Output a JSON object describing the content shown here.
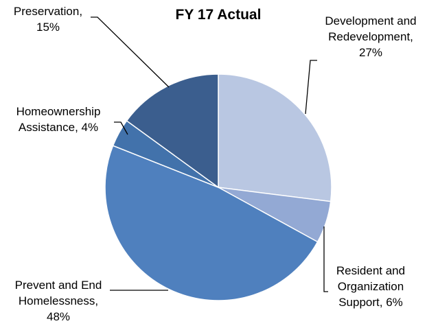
{
  "chart_data": {
    "type": "pie",
    "title": "FY 17 Actual",
    "values": [
      27,
      6,
      48,
      4,
      15
    ],
    "value_labels": [
      [
        "Development and",
        "Redevelopment,",
        "27%"
      ],
      [
        "Resident and",
        "Organization",
        "Support, 6%"
      ],
      [
        "Prevent and End",
        "Homelessness,",
        "48%"
      ],
      [
        "Homeownership",
        "Assistance, 4%"
      ],
      [
        "Preservation,",
        "15%"
      ]
    ],
    "colors": [
      "#b9c7e2",
      "#93a9d4",
      "#4f80be",
      "#4272ab",
      "#3b5e8e"
    ]
  }
}
